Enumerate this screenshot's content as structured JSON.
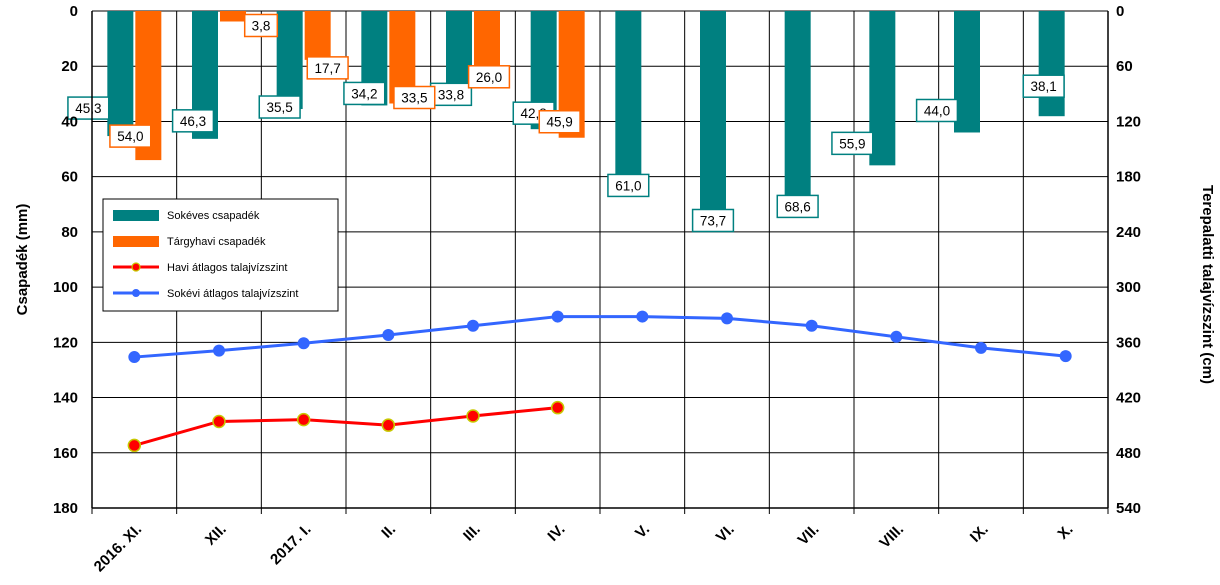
{
  "chart_data": {
    "type": "bar",
    "categories": [
      "2016. XI.",
      "XII.",
      "2017. I.",
      "II.",
      "III.",
      "IV.",
      "V.",
      "VI.",
      "VII.",
      "VIII.",
      "IX.",
      "X."
    ],
    "series": [
      {
        "name": "Sokéves csapadék",
        "type": "bar",
        "axis": "left",
        "color": "#008080",
        "values": [
          45.3,
          46.3,
          35.5,
          34.2,
          33.8,
          42.8,
          61.0,
          73.7,
          68.6,
          55.9,
          44.0,
          38.1
        ],
        "labels": [
          "45,3",
          "46,3",
          "35,5",
          "34,2",
          "33,8",
          "42,8",
          "61,0",
          "73,7",
          "68,6",
          "55,9",
          "44,0",
          "38,1"
        ]
      },
      {
        "name": "Tárgyhavi csapadék",
        "type": "bar",
        "axis": "left",
        "color": "#FF6600",
        "values": [
          54.0,
          3.8,
          17.7,
          33.5,
          26.0,
          45.9,
          null,
          null,
          null,
          null,
          null,
          null
        ],
        "labels": [
          "54,0",
          "3,8",
          "17,7",
          "33,5",
          "26,0",
          "45,9",
          null,
          null,
          null,
          null,
          null,
          null
        ]
      },
      {
        "name": "Havi átlagos talajvízszint",
        "type": "line",
        "axis": "right",
        "color": "#FF0000",
        "marker_color": "#FF0000",
        "marker_edge": "#C8C800",
        "values": [
          472,
          446,
          444,
          450,
          440,
          431,
          null,
          null,
          null,
          null,
          null,
          null
        ]
      },
      {
        "name": "Sokévi átlagos talajvízszint",
        "type": "line",
        "axis": "right",
        "color": "#3366FF",
        "marker_color": "#3366FF",
        "values": [
          376,
          369,
          361,
          352,
          342,
          332,
          332,
          334,
          342,
          354,
          366,
          375
        ]
      }
    ],
    "left_axis": {
      "title": "Csapadék (mm)",
      "range": [
        0,
        180
      ],
      "inverted": true,
      "ticks": [
        "0",
        "20",
        "40",
        "60",
        "80",
        "100",
        "120",
        "140",
        "160",
        "180"
      ]
    },
    "right_axis": {
      "title": "Terepalatti talajvízszint (cm)",
      "range": [
        0,
        540
      ],
      "inverted": true,
      "ticks": [
        "0",
        "60",
        "120",
        "180",
        "240",
        "300",
        "360",
        "420",
        "480",
        "540"
      ]
    },
    "grid": true,
    "legend_position": "middle-left"
  }
}
